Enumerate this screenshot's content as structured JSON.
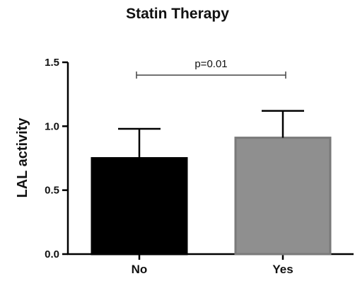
{
  "chart_data": {
    "type": "bar",
    "title": "Statin Therapy",
    "xlabel": "",
    "ylabel": "LAL activity",
    "categories": [
      "No",
      "Yes"
    ],
    "values": [
      0.75,
      0.91
    ],
    "error_plus": [
      0.23,
      0.21
    ],
    "ylim": [
      0,
      1.5
    ],
    "yticks": [
      0.0,
      0.5,
      1.0,
      1.5
    ],
    "ytick_labels": [
      "0.0",
      "0.5",
      "1.0",
      "1.5"
    ],
    "bar_colors": [
      "#000000",
      "#8f8f8f"
    ],
    "grid": false,
    "annotation": {
      "text": "p=0.01",
      "compares": [
        "No",
        "Yes"
      ],
      "y": 1.4
    }
  }
}
